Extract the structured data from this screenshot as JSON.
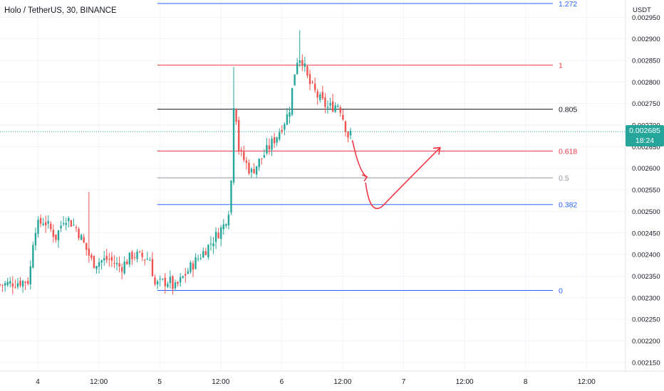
{
  "header": {
    "title": "Holo / TetherUS, 30, BINANCE"
  },
  "axis": {
    "currency": "USDT",
    "y_ticks": [
      "0.002950",
      "0.002900",
      "0.002850",
      "0.002800",
      "0.002750",
      "0.002700",
      "0.002650",
      "0.002600",
      "0.002550",
      "0.002500",
      "0.002450",
      "0.002400",
      "0.002350",
      "0.002300",
      "0.002250",
      "0.002200",
      "0.002150"
    ],
    "x_ticks": [
      {
        "label": "4",
        "day": 4.0
      },
      {
        "label": "12:00",
        "day": 4.5
      },
      {
        "label": "5",
        "day": 5.0
      },
      {
        "label": "12:00",
        "day": 5.5
      },
      {
        "label": "6",
        "day": 6.0
      },
      {
        "label": "12:00",
        "day": 6.5
      },
      {
        "label": "7",
        "day": 7.0
      },
      {
        "label": "12:00",
        "day": 7.5
      },
      {
        "label": "8",
        "day": 8.0
      },
      {
        "label": "12:00",
        "day": 8.5
      }
    ]
  },
  "price_badge": {
    "price": "0.002685",
    "countdown": "18:24",
    "color": "#26a69a"
  },
  "colors": {
    "up": "#26a69a",
    "down": "#ef5350",
    "fib_blue": "#2962ff",
    "fib_red": "#f23645",
    "fib_black": "#131722",
    "fib_gray": "#9598a1",
    "arrow": "#f23645"
  },
  "chart_data": {
    "type": "candlestick",
    "title": "Holo / TetherUS, 30, BINANCE",
    "ylabel": "USDT",
    "ylim": [
      0.00213,
      0.00299
    ],
    "xlim": [
      3.69,
      8.82
    ],
    "last_price": 0.002685,
    "fib_levels": [
      {
        "label": "1.272",
        "price": 0.002982,
        "color": "#2962ff"
      },
      {
        "label": "1",
        "price": 0.002839,
        "color": "#f23645"
      },
      {
        "label": "0.805",
        "price": 0.002737,
        "color": "#131722"
      },
      {
        "label": "0.618",
        "price": 0.00264,
        "color": "#f23645"
      },
      {
        "label": "0.5",
        "price": 0.002578,
        "color": "#9598a1"
      },
      {
        "label": "0.382",
        "price": 0.002516,
        "color": "#2962ff"
      },
      {
        "label": "0",
        "price": 0.002317,
        "color": "#2962ff"
      }
    ],
    "fib_start_day": 4.98,
    "projection_path": [
      {
        "day": 6.58,
        "price": 0.002665
      },
      {
        "day": 6.7,
        "price": 0.00258
      },
      {
        "day": 6.76,
        "price": 0.00251
      },
      {
        "day": 7.3,
        "price": 0.002648
      }
    ],
    "close_anchors": [
      {
        "day": 3.69,
        "price": 0.00233
      },
      {
        "day": 3.93,
        "price": 0.00234
      },
      {
        "day": 3.97,
        "price": 0.00246
      },
      {
        "day": 4.05,
        "price": 0.00248
      },
      {
        "day": 4.15,
        "price": 0.00244
      },
      {
        "day": 4.22,
        "price": 0.00249
      },
      {
        "day": 4.32,
        "price": 0.00246
      },
      {
        "day": 4.45,
        "price": 0.00238
      },
      {
        "day": 4.58,
        "price": 0.00239
      },
      {
        "day": 4.68,
        "price": 0.00237
      },
      {
        "day": 4.78,
        "price": 0.0024
      },
      {
        "day": 4.92,
        "price": 0.00239
      },
      {
        "day": 4.96,
        "price": 0.00233
      },
      {
        "day": 5.08,
        "price": 0.00234
      },
      {
        "day": 5.12,
        "price": 0.00232
      },
      {
        "day": 5.25,
        "price": 0.00237
      },
      {
        "day": 5.4,
        "price": 0.00242
      },
      {
        "day": 5.53,
        "price": 0.00247
      },
      {
        "day": 5.58,
        "price": 0.00252
      },
      {
        "day": 5.61,
        "price": 0.00278
      },
      {
        "day": 5.65,
        "price": 0.00264
      },
      {
        "day": 5.75,
        "price": 0.00259
      },
      {
        "day": 5.9,
        "price": 0.00265
      },
      {
        "day": 5.97,
        "price": 0.00268
      },
      {
        "day": 6.06,
        "price": 0.00273
      },
      {
        "day": 6.12,
        "price": 0.00285
      },
      {
        "day": 6.16,
        "price": 0.00286
      },
      {
        "day": 6.22,
        "price": 0.0028
      },
      {
        "day": 6.31,
        "price": 0.00276
      },
      {
        "day": 6.38,
        "price": 0.00274
      },
      {
        "day": 6.47,
        "price": 0.00275
      },
      {
        "day": 6.55,
        "price": 0.00267
      },
      {
        "day": 6.58,
        "price": 0.002685
      }
    ],
    "grid": true
  }
}
